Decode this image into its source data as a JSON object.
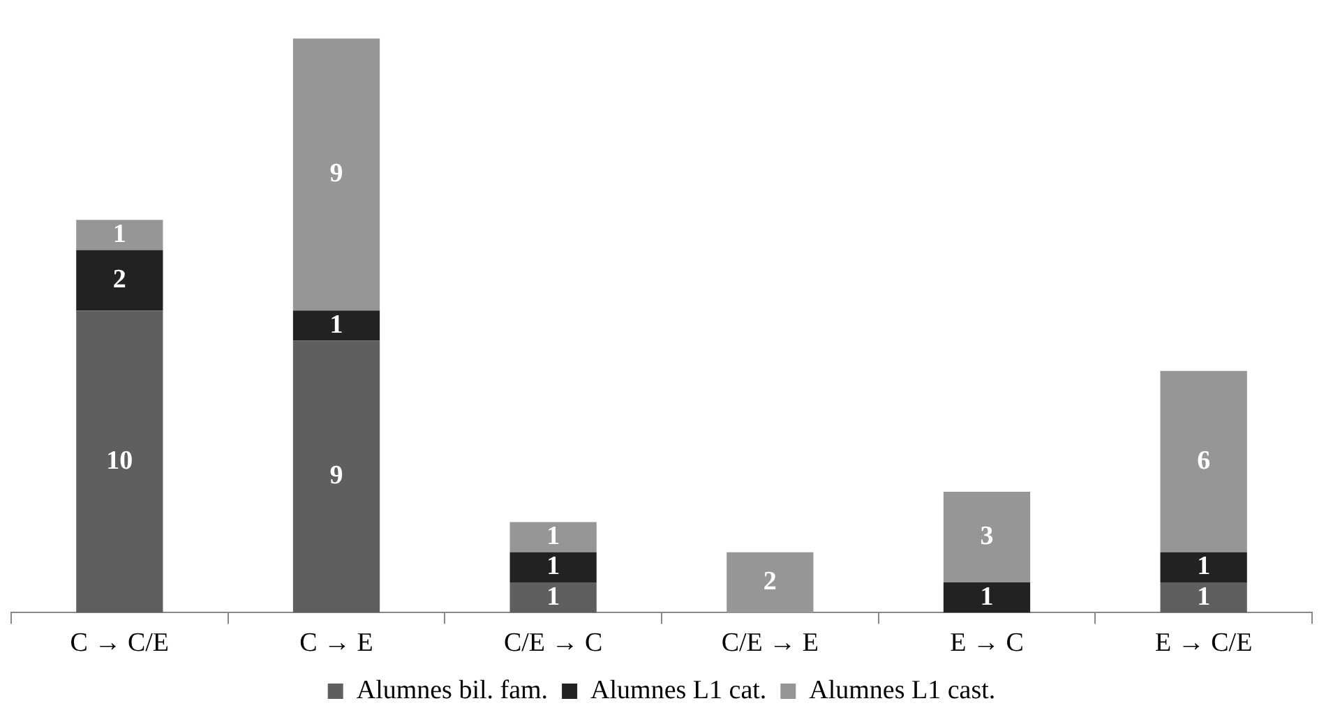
{
  "chart_data": {
    "type": "bar",
    "stacked": true,
    "data_labels": true,
    "legend": "bottom",
    "grid": false,
    "tick_labels": "x",
    "categories": [
      "C → C/E",
      "C → E",
      "C/E → C",
      "C/E → E",
      "E → C",
      "E → C/E"
    ],
    "series": [
      {
        "name": "Alumnes bil. fam.",
        "color": "#5f5f5f",
        "values": [
          10,
          9,
          1,
          null,
          null,
          1
        ]
      },
      {
        "name": "Alumnes L1 cat.",
        "color": "#222222",
        "values": [
          2,
          1,
          1,
          null,
          1,
          1
        ]
      },
      {
        "name": "Alumnes L1 cast.",
        "color": "#969696",
        "values": [
          1,
          9,
          1,
          2,
          3,
          6
        ]
      }
    ]
  }
}
